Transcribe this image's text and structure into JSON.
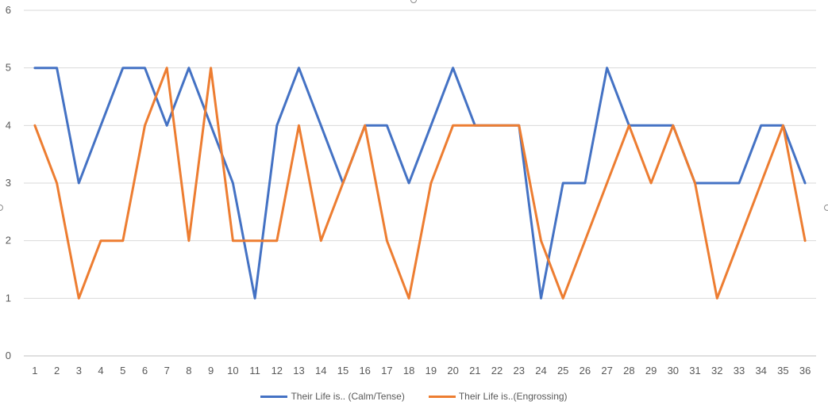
{
  "chart_data": {
    "type": "line",
    "title": "",
    "xlabel": "",
    "ylabel": "",
    "categories": [
      "1",
      "2",
      "3",
      "4",
      "5",
      "6",
      "7",
      "8",
      "9",
      "10",
      "11",
      "12",
      "13",
      "14",
      "15",
      "16",
      "17",
      "18",
      "19",
      "20",
      "21",
      "22",
      "23",
      "24",
      "25",
      "26",
      "27",
      "28",
      "29",
      "30",
      "31",
      "32",
      "33",
      "34",
      "35",
      "36"
    ],
    "ylim": [
      0,
      6
    ],
    "yticks": [
      0,
      1,
      2,
      3,
      4,
      5,
      6
    ],
    "grid": true,
    "legend_position": "bottom",
    "series": [
      {
        "name": "Their Life is.. (Calm/Tense)",
        "color": "#4472c4",
        "values": [
          5,
          5,
          3,
          4,
          5,
          5,
          4,
          5,
          4,
          3,
          1,
          4,
          5,
          4,
          3,
          4,
          4,
          3,
          4,
          5,
          4,
          4,
          4,
          1,
          3,
          3,
          5,
          4,
          4,
          4,
          3,
          3,
          3,
          4,
          4,
          3
        ]
      },
      {
        "name": "Their Life is..(Engrossing)",
        "color": "#ed7d31",
        "values": [
          4,
          3,
          1,
          2,
          2,
          4,
          5,
          2,
          5,
          2,
          2,
          2,
          4,
          2,
          3,
          4,
          2,
          1,
          3,
          4,
          4,
          4,
          4,
          2,
          1,
          2,
          3,
          4,
          3,
          4,
          3,
          1,
          2,
          3,
          4,
          2
        ]
      }
    ]
  }
}
